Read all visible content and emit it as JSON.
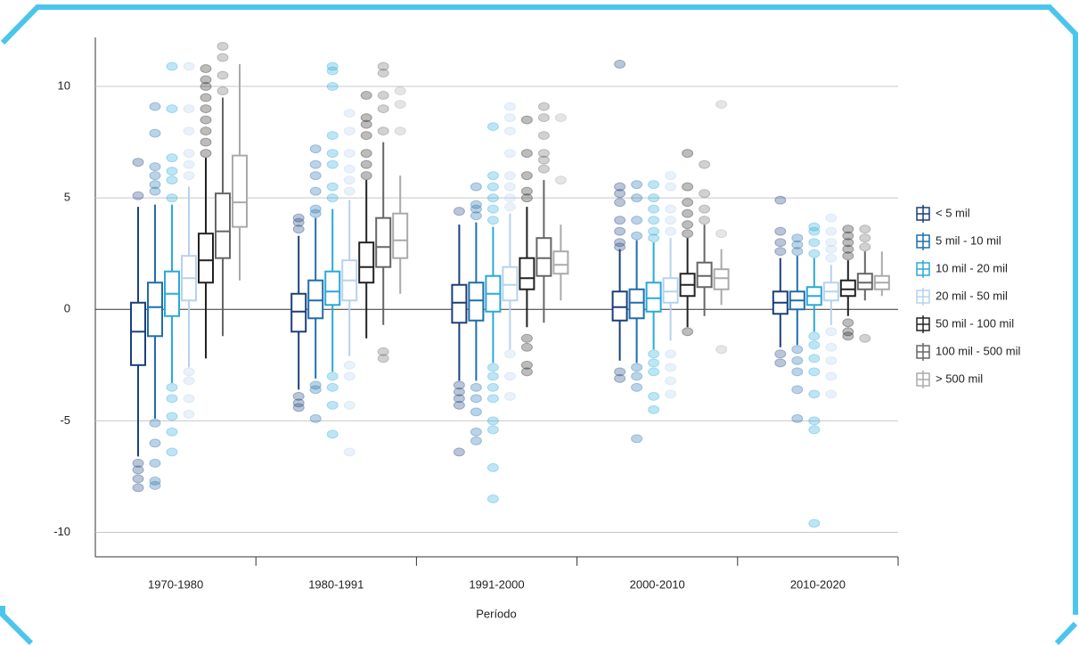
{
  "chart_data": {
    "type": "box",
    "xlabel": "Período",
    "categories": [
      "1970-1980",
      "1980-1991",
      "1991-2000",
      "2000-2010",
      "2010-2020"
    ],
    "ylim": [
      -11.1,
      12.2
    ],
    "yticks": [
      -10,
      -5,
      0,
      5,
      10
    ],
    "grid": true,
    "legend": "right",
    "series": [
      {
        "name": "< 5 mil",
        "color": "#1b3f7a",
        "values": [
          {
            "whislo": -6.6,
            "q1": -2.5,
            "med": -1.0,
            "q3": 0.3,
            "whishi": 4.6,
            "fliers": [
              5.1,
              6.6,
              -6.9,
              -7.2,
              -7.6,
              -8.0
            ]
          },
          {
            "whislo": -3.6,
            "q1": -1.0,
            "med": -0.1,
            "q3": 0.7,
            "whishi": 3.3,
            "fliers": [
              3.6,
              3.9,
              4.1,
              -3.9,
              -4.2,
              -4.4
            ]
          },
          {
            "whislo": -3.2,
            "q1": -0.6,
            "med": 0.3,
            "q3": 1.1,
            "whishi": 3.8,
            "fliers": [
              4.4,
              -3.4,
              -3.7,
              -4.0,
              -4.3,
              -6.4
            ]
          },
          {
            "whislo": -2.3,
            "q1": -0.5,
            "med": 0.1,
            "q3": 0.8,
            "whishi": 2.7,
            "fliers": [
              2.8,
              3.0,
              3.5,
              4.0,
              4.8,
              5.2,
              5.5,
              11.0,
              -2.8,
              -3.1
            ]
          },
          {
            "whislo": -1.7,
            "q1": -0.2,
            "med": 0.3,
            "q3": 0.8,
            "whishi": 2.3,
            "fliers": [
              2.6,
              3.0,
              3.5,
              4.9,
              -2.0,
              -2.4
            ]
          }
        ]
      },
      {
        "name": "5 mil - 10 mil",
        "color": "#1f6eab",
        "values": [
          {
            "whislo": -4.9,
            "q1": -1.2,
            "med": 0.1,
            "q3": 1.2,
            "whishi": 4.7,
            "fliers": [
              5.3,
              5.6,
              6.0,
              6.4,
              7.9,
              9.1,
              -5.1,
              -6.0,
              -6.9,
              -7.7,
              -7.9
            ]
          },
          {
            "whislo": -3.1,
            "q1": -0.4,
            "med": 0.4,
            "q3": 1.3,
            "whishi": 4.1,
            "fliers": [
              4.3,
              4.5,
              5.3,
              6.0,
              6.5,
              7.2,
              -3.4,
              -3.6,
              -4.9
            ]
          },
          {
            "whislo": -3.2,
            "q1": -0.5,
            "med": 0.4,
            "q3": 1.2,
            "whishi": 3.9,
            "fliers": [
              4.2,
              4.5,
              4.7,
              5.5,
              -3.5,
              -4.0,
              -4.6,
              -5.5,
              -5.9
            ]
          },
          {
            "whislo": -2.4,
            "q1": -0.4,
            "med": 0.3,
            "q3": 0.9,
            "whishi": 3.1,
            "fliers": [
              3.3,
              4.0,
              5.0,
              5.6,
              -2.6,
              -3.0,
              -3.5,
              -5.8
            ]
          },
          {
            "whislo": -1.6,
            "q1": 0.0,
            "med": 0.4,
            "q3": 0.8,
            "whishi": 2.4,
            "fliers": [
              2.6,
              2.9,
              3.2,
              -1.8,
              -2.3,
              -2.8,
              -3.6,
              -4.9
            ]
          }
        ]
      },
      {
        "name": "10 mil - 20 mil",
        "color": "#29a9d9",
        "values": [
          {
            "whislo": -3.3,
            "q1": -0.3,
            "med": 0.7,
            "q3": 1.7,
            "whishi": 4.7,
            "fliers": [
              5.0,
              5.8,
              6.2,
              6.8,
              9.0,
              10.9,
              -3.5,
              -4.0,
              -4.8,
              -5.5,
              -6.4
            ]
          },
          {
            "whislo": -2.8,
            "q1": 0.2,
            "med": 0.8,
            "q3": 1.7,
            "whishi": 4.5,
            "fliers": [
              5.0,
              5.5,
              6.5,
              7.0,
              7.8,
              10.0,
              10.7,
              10.9,
              -3.0,
              -3.5,
              -4.3,
              -5.6
            ]
          },
          {
            "whislo": -2.4,
            "q1": -0.1,
            "med": 0.7,
            "q3": 1.5,
            "whishi": 3.7,
            "fliers": [
              4.0,
              4.5,
              5.0,
              5.5,
              6.0,
              8.2,
              -2.6,
              -3.0,
              -3.5,
              -4.0,
              -5.0,
              -5.4,
              -7.1,
              -8.5
            ]
          },
          {
            "whislo": -1.8,
            "q1": -0.1,
            "med": 0.5,
            "q3": 1.2,
            "whishi": 3.0,
            "fliers": [
              3.2,
              3.5,
              4.0,
              4.5,
              5.0,
              5.6,
              -2.0,
              -2.4,
              -2.8,
              -3.9,
              -4.5
            ]
          },
          {
            "whislo": -1.0,
            "q1": 0.2,
            "med": 0.6,
            "q3": 1.0,
            "whishi": 2.3,
            "fliers": [
              2.5,
              3.0,
              3.5,
              3.7,
              -1.2,
              -1.6,
              -2.2,
              -2.8,
              -3.8,
              -5.0,
              -5.4,
              -9.6
            ]
          }
        ]
      },
      {
        "name": "20 mil - 50 mil",
        "color": "#b6d2ee",
        "values": [
          {
            "whislo": -2.6,
            "q1": 0.4,
            "med": 1.4,
            "q3": 2.4,
            "whishi": 5.5,
            "fliers": [
              6.0,
              6.5,
              7.0,
              8.0,
              9.0,
              10.9,
              -2.8,
              -3.2,
              -4.0,
              -4.7
            ]
          },
          {
            "whislo": -2.1,
            "q1": 0.4,
            "med": 1.3,
            "q3": 2.2,
            "whishi": 4.9,
            "fliers": [
              5.3,
              5.8,
              6.3,
              7.0,
              8.0,
              8.8,
              -2.5,
              -3.0,
              -4.3,
              -6.4
            ]
          },
          {
            "whislo": -1.8,
            "q1": 0.4,
            "med": 1.1,
            "q3": 1.9,
            "whishi": 4.3,
            "fliers": [
              4.6,
              5.0,
              5.5,
              6.0,
              7.0,
              8.0,
              8.6,
              9.1,
              -2.0,
              -3.0,
              -3.9
            ]
          },
          {
            "whislo": -1.4,
            "q1": 0.3,
            "med": 0.8,
            "q3": 1.4,
            "whishi": 3.2,
            "fliers": [
              3.5,
              4.0,
              4.5,
              5.5,
              6.0,
              -2.0,
              -2.6,
              -3.2,
              -3.8
            ]
          },
          {
            "whislo": -0.7,
            "q1": 0.4,
            "med": 0.8,
            "q3": 1.2,
            "whishi": 2.0,
            "fliers": [
              2.3,
              2.7,
              3.0,
              3.5,
              4.1,
              -1.0,
              -1.7,
              -2.3,
              -3.0,
              -3.8
            ]
          }
        ]
      },
      {
        "name": "50 mil - 100 mil",
        "color": "#222222",
        "values": [
          {
            "whislo": -2.2,
            "q1": 1.2,
            "med": 2.2,
            "q3": 3.4,
            "whishi": 6.8,
            "fliers": [
              7.0,
              7.5,
              8.0,
              8.5,
              9.0,
              9.5,
              10.0,
              10.3,
              10.8
            ]
          },
          {
            "whislo": -1.3,
            "q1": 1.2,
            "med": 1.9,
            "q3": 3.0,
            "whishi": 5.8,
            "fliers": [
              6.0,
              6.5,
              7.0,
              7.8,
              8.3,
              8.6,
              9.6
            ]
          },
          {
            "whislo": -0.8,
            "q1": 0.9,
            "med": 1.4,
            "q3": 2.3,
            "whishi": 4.6,
            "fliers": [
              -1.3,
              -1.7,
              -2.5,
              -2.8,
              5.0,
              5.3,
              6.0,
              7.0,
              8.5
            ]
          },
          {
            "whislo": -0.8,
            "q1": 0.6,
            "med": 1.1,
            "q3": 1.6,
            "whishi": 3.2,
            "fliers": [
              3.4,
              3.8,
              4.3,
              4.8,
              5.5,
              7.0,
              -1.0
            ]
          },
          {
            "whislo": -0.3,
            "q1": 0.6,
            "med": 0.9,
            "q3": 1.3,
            "whishi": 2.2,
            "fliers": [
              2.4,
              2.7,
              3.0,
              3.3,
              3.6,
              -0.6,
              -1.0,
              -1.2
            ]
          }
        ]
      },
      {
        "name": "100 mil - 500 mil",
        "color": "#666666",
        "values": [
          {
            "whislo": -1.2,
            "q1": 2.3,
            "med": 3.5,
            "q3": 5.2,
            "whishi": 9.5,
            "fliers": [
              9.8,
              10.5,
              11.3,
              11.8
            ]
          },
          {
            "whislo": -0.7,
            "q1": 1.9,
            "med": 2.8,
            "q3": 4.1,
            "whishi": 7.5,
            "fliers": [
              -1.9,
              -2.2,
              8.0,
              9.0,
              9.6,
              10.6,
              10.9
            ]
          },
          {
            "whislo": -0.6,
            "q1": 1.5,
            "med": 2.3,
            "q3": 3.2,
            "whishi": 5.8,
            "fliers": [
              6.3,
              6.7,
              7.0,
              7.8,
              8.6,
              9.1
            ]
          },
          {
            "whislo": -0.3,
            "q1": 1.0,
            "med": 1.5,
            "q3": 2.1,
            "whishi": 3.8,
            "fliers": [
              4.0,
              4.5,
              5.2,
              6.5
            ]
          },
          {
            "whislo": 0.4,
            "q1": 0.9,
            "med": 1.2,
            "q3": 1.6,
            "whishi": 2.6,
            "fliers": [
              2.8,
              3.2,
              3.6,
              -1.3
            ]
          }
        ]
      },
      {
        "name": "> 500 mil",
        "color": "#aaaaaa",
        "values": [
          {
            "whislo": 1.3,
            "q1": 3.7,
            "med": 4.8,
            "q3": 6.9,
            "whishi": 11.0,
            "fliers": []
          },
          {
            "whislo": 0.7,
            "q1": 2.3,
            "med": 3.1,
            "q3": 4.3,
            "whishi": 6.0,
            "fliers": [
              8.0,
              9.2,
              9.8
            ]
          },
          {
            "whislo": 0.4,
            "q1": 1.6,
            "med": 2.0,
            "q3": 2.6,
            "whishi": 3.8,
            "fliers": [
              5.8,
              8.6
            ]
          },
          {
            "whislo": 0.2,
            "q1": 0.9,
            "med": 1.4,
            "q3": 1.8,
            "whishi": 2.7,
            "fliers": [
              3.4,
              9.2,
              -1.8
            ]
          },
          {
            "whislo": 0.6,
            "q1": 0.9,
            "med": 1.2,
            "q3": 1.5,
            "whishi": 2.6,
            "fliers": []
          }
        ]
      }
    ]
  }
}
